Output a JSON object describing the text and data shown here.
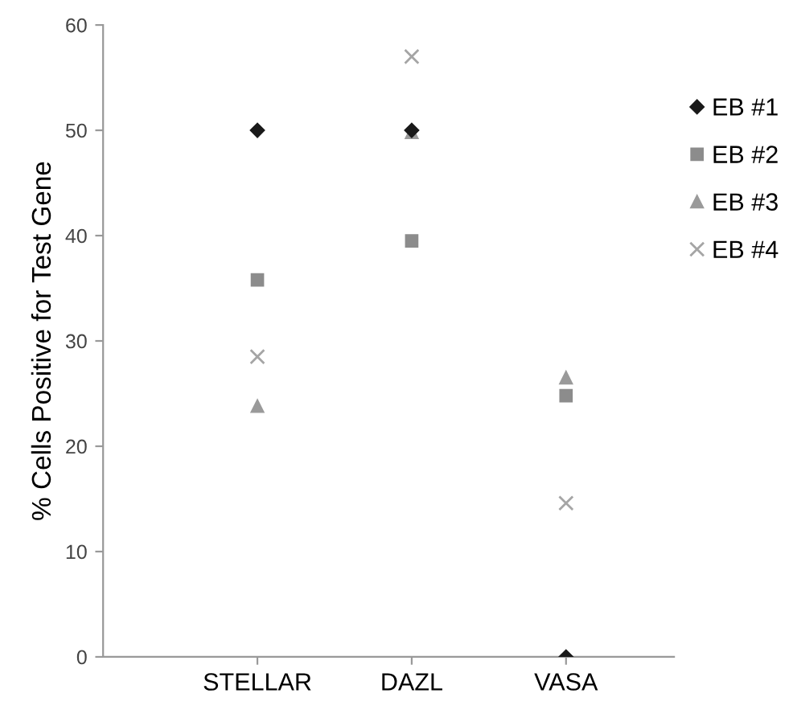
{
  "chart_data": {
    "type": "scatter",
    "ylabel": "% Cells Positive for Test Gene",
    "categories": [
      "STELLAR",
      "DAZL",
      "VASA"
    ],
    "series": [
      {
        "name": "EB #1",
        "color": "#1a1a1a",
        "marker": "diamond",
        "values": [
          50,
          50,
          0
        ]
      },
      {
        "name": "EB #2",
        "color": "#8c8c8c",
        "marker": "square",
        "values": [
          35.8,
          39.5,
          24.8
        ]
      },
      {
        "name": "EB #3",
        "color": "#9a9a9a",
        "marker": "triangle",
        "values": [
          23.8,
          49.8,
          26.5
        ]
      },
      {
        "name": "EB #4",
        "color": "#a5a5a5",
        "marker": "cross",
        "values": [
          28.5,
          57,
          14.6
        ]
      }
    ],
    "ylim": [
      0,
      60
    ],
    "yticks": [
      0,
      10,
      20,
      30,
      40,
      50,
      60
    ],
    "grid": false,
    "legend": "top right"
  }
}
